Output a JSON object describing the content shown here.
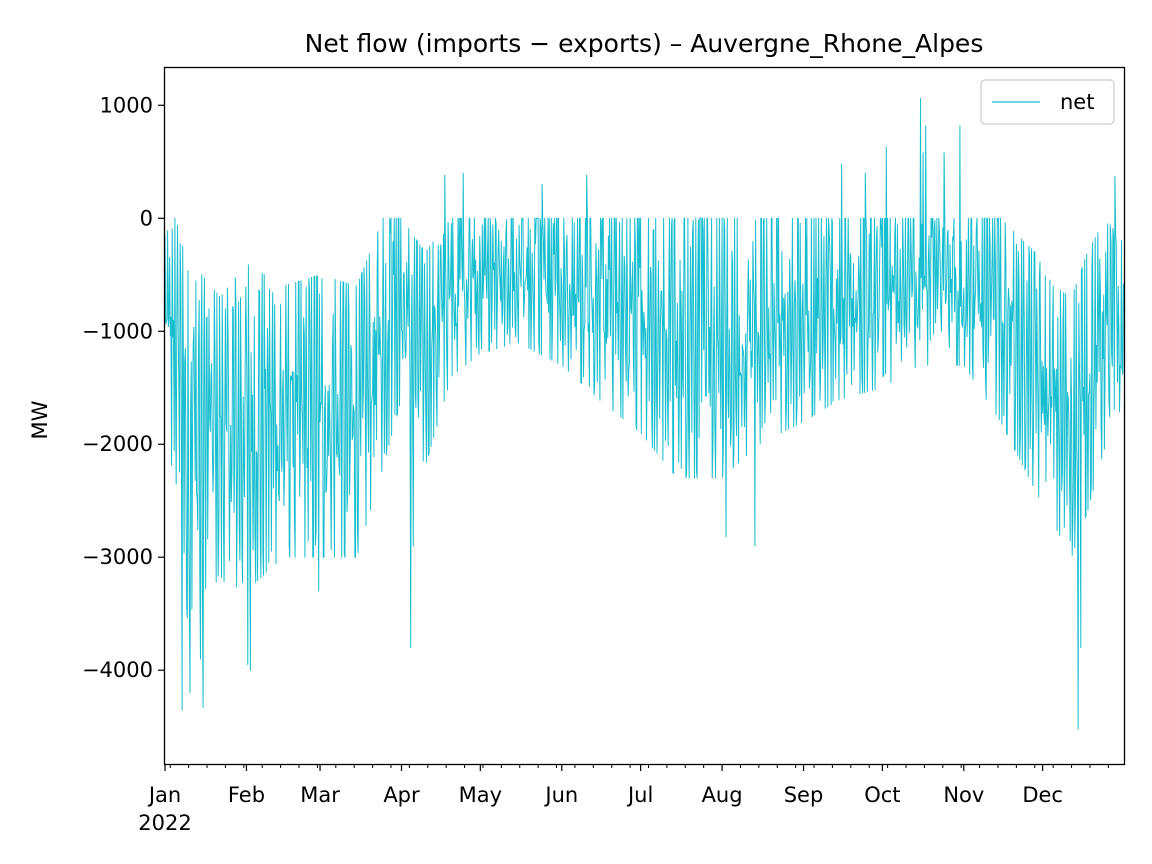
{
  "chart_data": {
    "type": "line",
    "title": "Net flow (imports − exports) – Auvergne_Rhone_Alpes",
    "xlabel": "",
    "ylabel": "MW",
    "ylim": [
      -4830,
      1330
    ],
    "yticks": [
      1000,
      0,
      -1000,
      -2000,
      -3000,
      -4000
    ],
    "ytick_labels": [
      "1000",
      "0",
      "−1000",
      "−2000",
      "−3000",
      "−4000"
    ],
    "x_domain": [
      "2022-01-01",
      "2022-12-31"
    ],
    "xticks": [
      {
        "label": "Jan",
        "date": "2022-01-01"
      },
      {
        "label": "Feb",
        "date": "2022-02-01"
      },
      {
        "label": "Mar",
        "date": "2022-03-01"
      },
      {
        "label": "Apr",
        "date": "2022-04-01"
      },
      {
        "label": "May",
        "date": "2022-05-01"
      },
      {
        "label": "Jun",
        "date": "2022-06-01"
      },
      {
        "label": "Jul",
        "date": "2022-07-01"
      },
      {
        "label": "Aug",
        "date": "2022-08-01"
      },
      {
        "label": "Sep",
        "date": "2022-09-01"
      },
      {
        "label": "Oct",
        "date": "2022-10-01"
      },
      {
        "label": "Nov",
        "date": "2022-11-01"
      },
      {
        "label": "Dec",
        "date": "2022-12-01"
      }
    ],
    "year_label": "2022",
    "grid": false,
    "legend_position": "top-right",
    "series": [
      {
        "name": "net",
        "color": "#17becf",
        "sampling": "hourly, approximate envelope and spikes",
        "envelope": [
          {
            "date": "2022-01-01",
            "low": -1400,
            "high": 0
          },
          {
            "date": "2022-01-08",
            "low": -3600,
            "high": 0
          },
          {
            "date": "2022-01-15",
            "low": -3300,
            "high": -500
          },
          {
            "date": "2022-01-22",
            "low": -3200,
            "high": -700
          },
          {
            "date": "2022-02-01",
            "low": -3300,
            "high": -400
          },
          {
            "date": "2022-02-15",
            "low": -3000,
            "high": -600
          },
          {
            "date": "2022-03-01",
            "low": -3000,
            "high": -500
          },
          {
            "date": "2022-03-15",
            "low": -3000,
            "high": -600
          },
          {
            "date": "2022-03-25",
            "low": -2200,
            "high": 0
          },
          {
            "date": "2022-04-01",
            "low": -1600,
            "high": 0
          },
          {
            "date": "2022-04-10",
            "low": -2200,
            "high": -300
          },
          {
            "date": "2022-04-20",
            "low": -1400,
            "high": 0
          },
          {
            "date": "2022-05-01",
            "low": -1200,
            "high": 0
          },
          {
            "date": "2022-05-15",
            "low": -1100,
            "high": 0
          },
          {
            "date": "2022-06-01",
            "low": -1300,
            "high": 0
          },
          {
            "date": "2022-06-15",
            "low": -1600,
            "high": 0
          },
          {
            "date": "2022-07-01",
            "low": -1900,
            "high": 0
          },
          {
            "date": "2022-07-15",
            "low": -2300,
            "high": 0
          },
          {
            "date": "2022-08-01",
            "low": -2300,
            "high": 0
          },
          {
            "date": "2022-08-15",
            "low": -2000,
            "high": 0
          },
          {
            "date": "2022-09-01",
            "low": -1800,
            "high": 0
          },
          {
            "date": "2022-09-15",
            "low": -1600,
            "high": 0
          },
          {
            "date": "2022-10-01",
            "low": -1500,
            "high": 0
          },
          {
            "date": "2022-10-15",
            "low": -1300,
            "high": 0
          },
          {
            "date": "2022-11-01",
            "low": -1300,
            "high": 0
          },
          {
            "date": "2022-11-15",
            "low": -1800,
            "high": 0
          },
          {
            "date": "2022-11-28",
            "low": -2400,
            "high": -300
          },
          {
            "date": "2022-12-05",
            "low": -2700,
            "high": -600
          },
          {
            "date": "2022-12-12",
            "low": -3000,
            "high": -700
          },
          {
            "date": "2022-12-18",
            "low": -2600,
            "high": -300
          },
          {
            "date": "2022-12-25",
            "low": -2000,
            "high": 0
          },
          {
            "date": "2022-12-31",
            "low": -1900,
            "high": -200
          }
        ],
        "spikes": [
          {
            "date": "2022-01-07",
            "value": -4350
          },
          {
            "date": "2022-01-10",
            "value": -4200
          },
          {
            "date": "2022-01-15",
            "value": -4330
          },
          {
            "date": "2022-01-14",
            "value": -3900
          },
          {
            "date": "2022-02-01",
            "value": -3950
          },
          {
            "date": "2022-02-02",
            "value": -4000
          },
          {
            "date": "2022-02-28",
            "value": -3300
          },
          {
            "date": "2022-04-04",
            "value": -3800
          },
          {
            "date": "2022-04-05",
            "value": -2900
          },
          {
            "date": "2022-08-02",
            "value": -2820
          },
          {
            "date": "2022-08-13",
            "value": -2900
          },
          {
            "date": "2022-12-14",
            "value": -4520
          },
          {
            "date": "2022-12-15",
            "value": -3800
          },
          {
            "date": "2022-04-17",
            "value": 380
          },
          {
            "date": "2022-04-24",
            "value": 400
          },
          {
            "date": "2022-05-24",
            "value": 300
          },
          {
            "date": "2022-06-10",
            "value": 380
          },
          {
            "date": "2022-09-15",
            "value": 480
          },
          {
            "date": "2022-09-24",
            "value": 400
          },
          {
            "date": "2022-10-02",
            "value": 630
          },
          {
            "date": "2022-10-15",
            "value": 1060
          },
          {
            "date": "2022-10-16",
            "value": 580
          },
          {
            "date": "2022-10-17",
            "value": 820
          },
          {
            "date": "2022-10-24",
            "value": 580
          },
          {
            "date": "2022-10-30",
            "value": 820
          },
          {
            "date": "2022-12-28",
            "value": 370
          }
        ]
      }
    ]
  }
}
